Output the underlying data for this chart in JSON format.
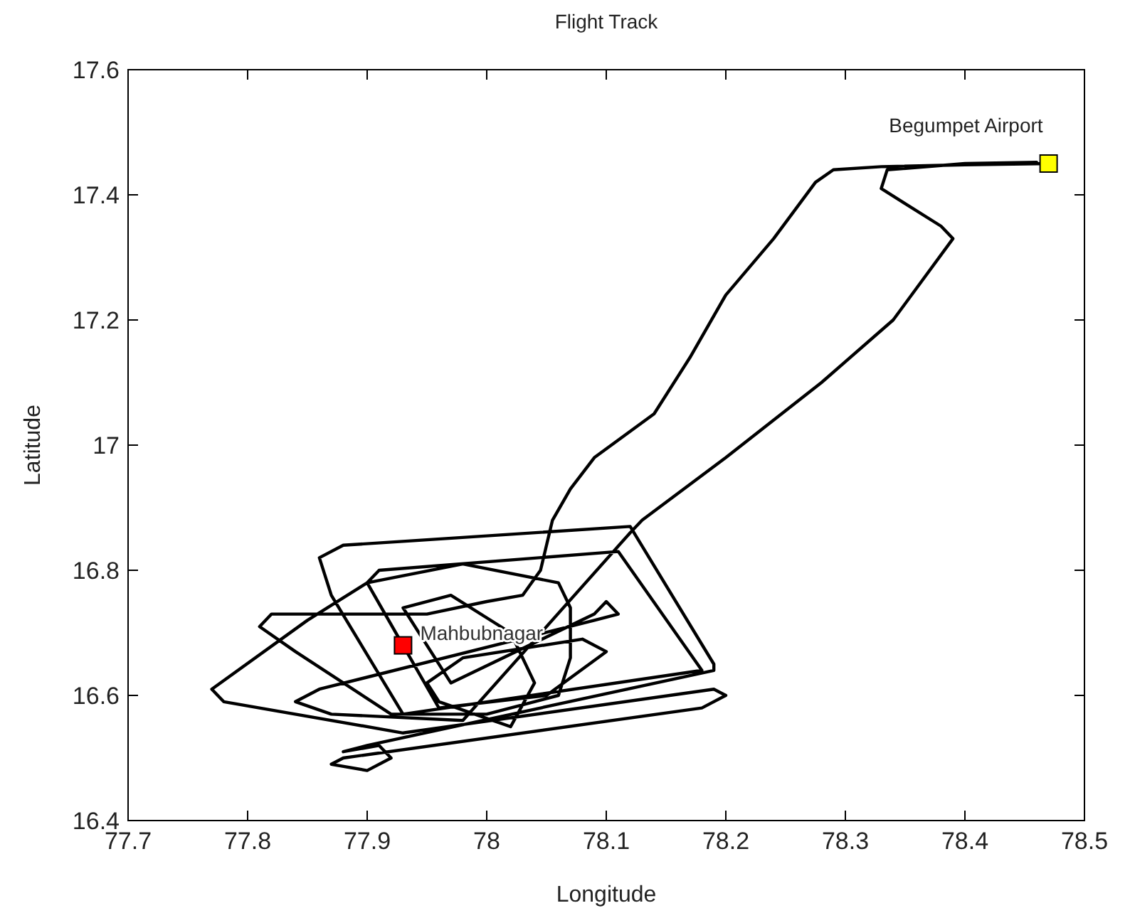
{
  "chart_data": {
    "type": "line",
    "title": "Flight Track",
    "xlabel": "Longitude",
    "ylabel": "Latitude",
    "xlim": [
      77.7,
      78.5
    ],
    "xticks": [
      77.7,
      77.8,
      77.9,
      78,
      78.1,
      78.2,
      78.3,
      78.4,
      78.5
    ],
    "ylim": [
      16.4,
      17.6
    ],
    "yticks": [
      16.4,
      16.6,
      16.8,
      17,
      17.2,
      17.4,
      17.6
    ],
    "x": [
      78.47,
      78.4,
      78.33,
      78.29,
      78.275,
      78.24,
      78.2,
      78.17,
      78.14,
      78.09,
      78.07,
      78.055,
      78.045,
      78.03,
      78.0,
      77.95,
      77.82,
      77.81,
      77.84,
      77.92,
      78.0,
      78.06,
      78.07,
      78.07,
      78.06,
      77.98,
      77.9,
      77.85,
      77.77,
      77.78,
      77.93,
      78.19,
      78.2,
      78.18,
      77.88,
      77.87,
      77.9,
      77.92,
      77.91,
      77.88,
      77.9,
      78.19,
      78.19,
      78.12,
      77.88,
      77.86,
      77.87,
      77.93,
      78.18,
      78.11,
      77.91,
      77.9,
      77.96,
      78.05,
      78.1,
      78.08,
      77.98,
      77.95,
      77.96,
      78.02,
      78.04,
      78.02,
      77.97,
      77.93,
      77.97,
      78.09,
      78.1,
      78.11,
      78.09,
      77.86,
      77.84,
      77.87,
      77.98,
      78.12,
      78.13,
      78.2,
      78.28,
      78.34,
      78.39,
      78.38,
      78.33,
      78.335,
      78.4,
      78.46
    ],
    "series": [
      {
        "color": "#000000",
        "values": [
          17.45,
          17.448,
          17.445,
          17.44,
          17.42,
          17.33,
          17.24,
          17.14,
          17.05,
          16.98,
          16.93,
          16.88,
          16.8,
          16.76,
          16.75,
          16.73,
          16.73,
          16.71,
          16.67,
          16.57,
          16.57,
          16.6,
          16.66,
          16.74,
          16.78,
          16.81,
          16.78,
          16.72,
          16.61,
          16.59,
          16.54,
          16.61,
          16.6,
          16.58,
          16.5,
          16.49,
          16.48,
          16.5,
          16.52,
          16.51,
          16.52,
          16.64,
          16.65,
          16.87,
          16.84,
          16.82,
          16.76,
          16.57,
          16.64,
          16.83,
          16.8,
          16.78,
          16.58,
          16.6,
          16.67,
          16.69,
          16.66,
          16.62,
          16.59,
          16.55,
          16.62,
          16.7,
          16.76,
          16.74,
          16.62,
          16.73,
          16.75,
          16.73,
          16.72,
          16.61,
          16.59,
          16.57,
          16.56,
          16.86,
          16.88,
          16.98,
          17.1,
          17.2,
          17.33,
          17.35,
          17.41,
          17.44,
          17.45,
          17.452
        ]
      },
      {
        "type": "scatter",
        "name": "Begumpet Airport",
        "color": "#ffff00",
        "marker": "square",
        "x": [
          78.47
        ],
        "values": [
          17.45
        ]
      },
      {
        "type": "scatter",
        "name": "Mahbubnagar",
        "color": "#ff0000",
        "marker": "square",
        "x": [
          77.93
        ],
        "values": [
          16.68
        ]
      }
    ]
  }
}
